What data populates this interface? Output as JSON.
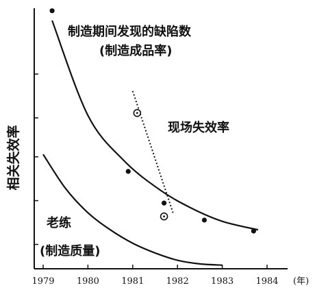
{
  "chart_data": {
    "type": "line",
    "ylabel": "相关失效率",
    "x_unit": "(年)",
    "x_ticks": [
      "1979",
      "1980",
      "1981",
      "1982",
      "1983",
      "1984"
    ],
    "xlim": [
      1979,
      1984
    ],
    "ylim": [
      0,
      10
    ],
    "y_ticks": [
      1,
      2.8,
      4.6,
      6.2,
      8
    ],
    "annotations": {
      "defects_line1": "制造期间发现的缺陷数",
      "defects_line2": "(制造成品率)",
      "field": "现场失效率",
      "veteran_line1": "老练",
      "veteran_line2": "(制造质量)"
    },
    "series": [
      {
        "style": "solid-curve-with-dots",
        "x": [
          1979.2,
          1980.0,
          1980.8,
          1981.6,
          1982.3,
          1983.0,
          1983.8
        ],
        "y": [
          10.2,
          6.3,
          4.45,
          3.25,
          2.5,
          1.95,
          1.6
        ],
        "points_x": [
          1979.2,
          1980.9,
          1981.7,
          1982.6,
          1983.7
        ],
        "points_y": [
          10.6,
          4.0,
          2.7,
          2.0,
          1.55
        ]
      },
      {
        "style": "dotted-line-with-circles",
        "x": [
          1981.0,
          1981.9
        ],
        "y": [
          7.3,
          2.3
        ],
        "points_x": [
          1981.1,
          1981.7
        ],
        "points_y": [
          6.4,
          2.15
        ]
      },
      {
        "style": "solid-curve",
        "x": [
          1979.0,
          1979.5,
          1980.0,
          1980.5,
          1981.0,
          1981.5,
          1982.0,
          1982.5,
          1983.0
        ],
        "y": [
          4.7,
          3.3,
          2.3,
          1.6,
          1.05,
          0.65,
          0.35,
          0.2,
          0.15
        ]
      }
    ]
  }
}
